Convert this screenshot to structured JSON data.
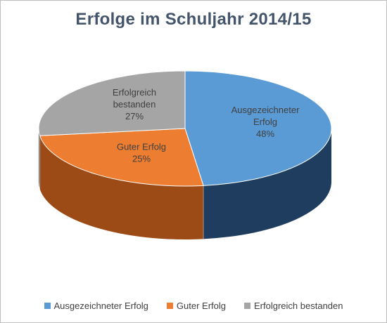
{
  "chart_data": {
    "type": "pie",
    "title": "Erfolge im Schuljahr 2014/15",
    "three_d": true,
    "labels": [
      "Ausgezeichneter Erfolg",
      "Guter Erfolg",
      "Erfolgreich bestanden"
    ],
    "data_labels": [
      {
        "lines": [
          "Ausgezeichneter",
          "Erfolg"
        ],
        "pct": "48%"
      },
      {
        "lines": [
          "Guter Erfolg"
        ],
        "pct": "25%"
      },
      {
        "lines": [
          "Erfolgreich",
          "bestanden"
        ],
        "pct": "27%"
      }
    ],
    "values": [
      48,
      25,
      27
    ],
    "colors": [
      "#5b9bd5",
      "#ed7d31",
      "#a5a5a5"
    ],
    "side_colors": [
      "#1f3d5e",
      "#9c4a16",
      "#6b6b6b"
    ],
    "legend_position": "bottom"
  }
}
